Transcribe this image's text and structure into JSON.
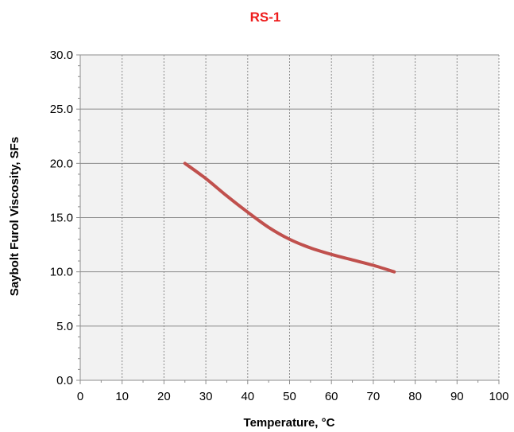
{
  "colors": {
    "title": "#ee1c1c",
    "plot_background": "#f2f2f2",
    "series_line": "#c0504d",
    "grid": "#8c8c8c",
    "axis": "#8c8c8c"
  },
  "chart_data": {
    "type": "line",
    "title": "RS-1",
    "xlabel": "Temperature, °C",
    "ylabel": "Saybolt Furol Viscosity, SFs",
    "xlim": [
      0,
      100
    ],
    "ylim": [
      0,
      30
    ],
    "x_ticks": [
      "0",
      "10",
      "20",
      "30",
      "40",
      "50",
      "60",
      "70",
      "80",
      "90",
      "100"
    ],
    "y_ticks": [
      "0.0",
      "5.0",
      "10.0",
      "15.0",
      "20.0",
      "25.0",
      "30.0"
    ],
    "grid": true,
    "legend": "none",
    "series": [
      {
        "x": [
          25,
          30,
          35,
          40,
          45,
          50,
          55,
          60,
          65,
          70,
          75
        ],
        "y": [
          20.0,
          18.6,
          17.0,
          15.5,
          14.1,
          13.0,
          12.2,
          11.6,
          11.1,
          10.6,
          10.0
        ]
      }
    ]
  }
}
